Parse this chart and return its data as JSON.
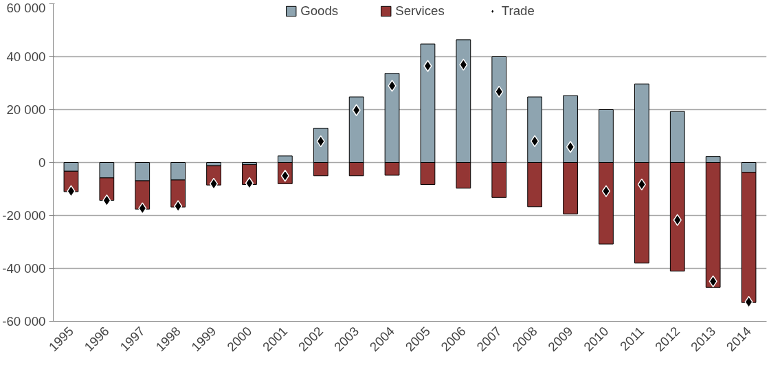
{
  "chart_data": {
    "type": "bar",
    "stacked": true,
    "categories": [
      "1995",
      "1996",
      "1997",
      "1998",
      "1999",
      "2000",
      "2001",
      "2002",
      "2003",
      "2004",
      "2005",
      "2006",
      "2007",
      "2008",
      "2009",
      "2010",
      "2011",
      "2012",
      "2013",
      "2014"
    ],
    "series": [
      {
        "name": "Goods",
        "color": "#8ea4b0",
        "values": [
          -3300,
          -5800,
          -6900,
          -6600,
          -1200,
          -800,
          2500,
          13000,
          24800,
          33700,
          44800,
          46400,
          40000,
          24800,
          25300,
          20000,
          29700,
          19300,
          2300,
          -3700
        ]
      },
      {
        "name": "Services",
        "color": "#943634",
        "values": [
          -7700,
          -8500,
          -10700,
          -10200,
          -7300,
          -7500,
          -8000,
          -5000,
          -5000,
          -4800,
          -8300,
          -9700,
          -13200,
          -16700,
          -19400,
          -30800,
          -38000,
          -41000,
          -47200,
          -49200
        ]
      },
      {
        "name": "Trade",
        "type": "scatter",
        "marker": "diamond",
        "color": "#000000",
        "values": [
          -10800,
          -14300,
          -17300,
          -16500,
          -8000,
          -7800,
          -5000,
          8000,
          19800,
          29000,
          36500,
          37000,
          26800,
          8100,
          5900,
          -10800,
          -8300,
          -21700,
          -44900,
          -52700
        ]
      }
    ],
    "ylim": [
      -60000,
      60000
    ],
    "yticks": [
      {
        "value": -60000,
        "label": "-60 000"
      },
      {
        "value": -40000,
        "label": "-40 000"
      },
      {
        "value": -20000,
        "label": "-20 000"
      },
      {
        "value": 0,
        "label": "0"
      },
      {
        "value": 20000,
        "label": "20 000"
      },
      {
        "value": 40000,
        "label": "40 000"
      },
      {
        "value": 60000,
        "label": "60 000"
      }
    ],
    "grid": "y",
    "legend": "top"
  }
}
